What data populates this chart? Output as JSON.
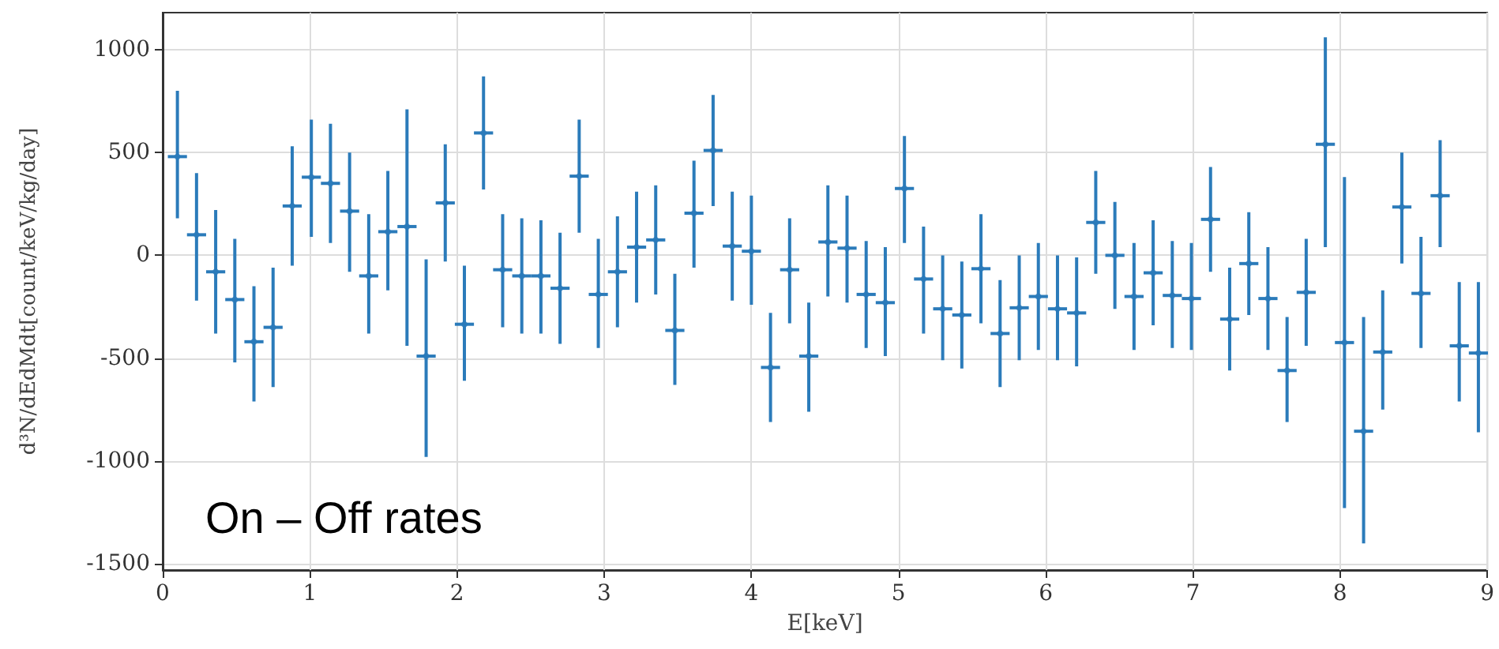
{
  "chart_data": {
    "type": "scatter",
    "xlabel": "E[keV]",
    "ylabel": "d³N/dEdMdt[count/keV/kg/day]",
    "annotations": [
      "On – Off rates"
    ],
    "xlim": [
      0,
      9
    ],
    "xticks": [
      0,
      1,
      2,
      3,
      4,
      5,
      6,
      7,
      8,
      9
    ],
    "ylim": [
      -1530,
      1180
    ],
    "yticks": [
      -1500,
      -1000,
      -500,
      0,
      500,
      1000
    ],
    "grid": true,
    "series": [
      {
        "color": "#2b7bba",
        "x": [
          0.1,
          0.23,
          0.36,
          0.49,
          0.62,
          0.75,
          0.88,
          1.01,
          1.14,
          1.27,
          1.4,
          1.53,
          1.66,
          1.79,
          1.92,
          2.05,
          2.18,
          2.31,
          2.44,
          2.57,
          2.7,
          2.83,
          2.96,
          3.09,
          3.22,
          3.35,
          3.48,
          3.61,
          3.74,
          3.87,
          4.0,
          4.13,
          4.26,
          4.39,
          4.52,
          4.65,
          4.78,
          4.91,
          5.04,
          5.17,
          5.3,
          5.43,
          5.56,
          5.69,
          5.82,
          5.95,
          6.08,
          6.21,
          6.34,
          6.47,
          6.6,
          6.73,
          6.86,
          6.99,
          7.12,
          7.25,
          7.38,
          7.51,
          7.64,
          7.77,
          7.9,
          8.03,
          8.16,
          8.29,
          8.42,
          8.55,
          8.68,
          8.81,
          8.94
        ],
        "values": [
          480,
          100,
          -80,
          -215,
          -420,
          -350,
          240,
          380,
          350,
          215,
          -100,
          115,
          140,
          -490,
          255,
          -335,
          595,
          -70,
          -100,
          -100,
          -160,
          385,
          -190,
          -80,
          40,
          75,
          -365,
          205,
          510,
          45,
          20,
          -545,
          -70,
          -490,
          65,
          35,
          -190,
          -230,
          325,
          -115,
          -260,
          -290,
          -65,
          -380,
          -255,
          -200,
          -260,
          -280,
          160,
          0,
          -200,
          -85,
          -195,
          -210,
          175,
          -310,
          -40,
          -210,
          -560,
          -180,
          540,
          -424,
          -855,
          -470,
          235,
          -185,
          290,
          -440,
          -475
        ],
        "errors": [
          [
            180,
            800
          ],
          [
            -220,
            400
          ],
          [
            -380,
            220
          ],
          [
            -520,
            80
          ],
          [
            -710,
            -150
          ],
          [
            -640,
            -60
          ],
          [
            -50,
            530
          ],
          [
            90,
            660
          ],
          [
            60,
            640
          ],
          [
            -80,
            500
          ],
          [
            -380,
            200
          ],
          [
            -170,
            410
          ],
          [
            -440,
            710
          ],
          [
            -980,
            -20
          ],
          [
            -30,
            540
          ],
          [
            -610,
            -50
          ],
          [
            320,
            870
          ],
          [
            -350,
            200
          ],
          [
            -380,
            180
          ],
          [
            -380,
            170
          ],
          [
            -430,
            110
          ],
          [
            110,
            660
          ],
          [
            -450,
            80
          ],
          [
            -350,
            190
          ],
          [
            -230,
            310
          ],
          [
            -190,
            340
          ],
          [
            -630,
            -90
          ],
          [
            -60,
            460
          ],
          [
            240,
            780
          ],
          [
            -220,
            310
          ],
          [
            -240,
            290
          ],
          [
            -810,
            -280
          ],
          [
            -330,
            180
          ],
          [
            -760,
            -230
          ],
          [
            -200,
            340
          ],
          [
            -230,
            290
          ],
          [
            -450,
            70
          ],
          [
            -490,
            40
          ],
          [
            60,
            580
          ],
          [
            -380,
            140
          ],
          [
            -510,
            0
          ],
          [
            -550,
            -30
          ],
          [
            -330,
            200
          ],
          [
            -640,
            -120
          ],
          [
            -510,
            0
          ],
          [
            -460,
            60
          ],
          [
            -510,
            0
          ],
          [
            -540,
            -10
          ],
          [
            -90,
            410
          ],
          [
            -260,
            260
          ],
          [
            -460,
            60
          ],
          [
            -340,
            170
          ],
          [
            -450,
            70
          ],
          [
            -460,
            60
          ],
          [
            -80,
            430
          ],
          [
            -560,
            -60
          ],
          [
            -290,
            210
          ],
          [
            -460,
            40
          ],
          [
            -810,
            -300
          ],
          [
            -440,
            80
          ],
          [
            40,
            1060
          ],
          [
            -1229,
            381
          ],
          [
            -1400,
            -300
          ],
          [
            -750,
            -170
          ],
          [
            -40,
            500
          ],
          [
            -450,
            90
          ],
          [
            40,
            560
          ],
          [
            -710,
            -130
          ],
          [
            -860,
            -130
          ]
        ],
        "xerrors": [
          0.065,
          0.065,
          0.065,
          0.065,
          0.065,
          0.065,
          0.065,
          0.065,
          0.065,
          0.065,
          0.065,
          0.065,
          0.065,
          0.065,
          0.065,
          0.065,
          0.065,
          0.065,
          0.065,
          0.065,
          0.065,
          0.065,
          0.065,
          0.065,
          0.065,
          0.065,
          0.065,
          0.065,
          0.065,
          0.065,
          0.065,
          0.065,
          0.065,
          0.065,
          0.065,
          0.065,
          0.065,
          0.065,
          0.065,
          0.065,
          0.065,
          0.065,
          0.065,
          0.065,
          0.065,
          0.065,
          0.065,
          0.065,
          0.065,
          0.065,
          0.065,
          0.065,
          0.065,
          0.065,
          0.065,
          0.065,
          0.065,
          0.065,
          0.065,
          0.065,
          0.065,
          0.065,
          0.065,
          0.065,
          0.065,
          0.065,
          0.065,
          0.065,
          0.065
        ]
      }
    ]
  }
}
